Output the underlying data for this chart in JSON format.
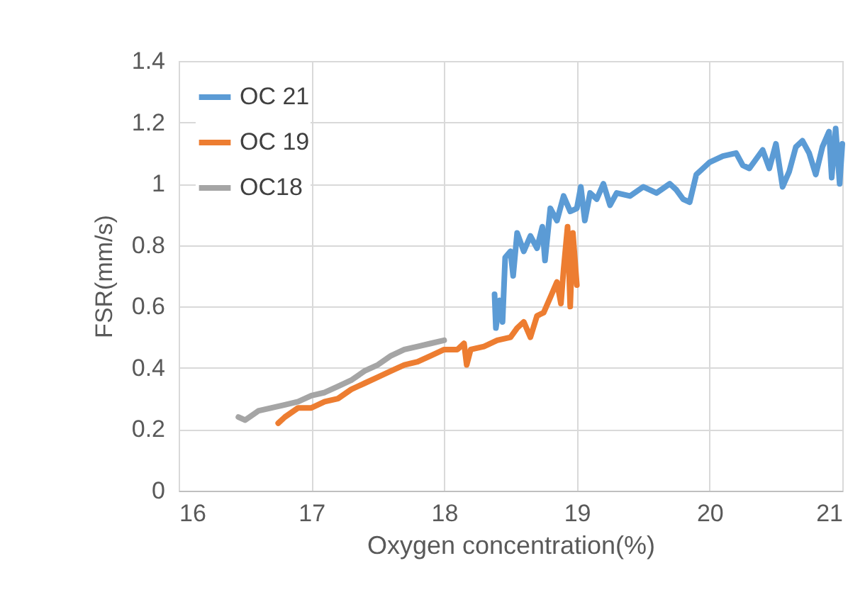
{
  "chart_data": {
    "type": "line",
    "xlabel": "Oxygen concentration(%)",
    "ylabel": "FSR(mm/s)",
    "xlim": [
      16,
      21
    ],
    "xticks": [
      16,
      17,
      18,
      19,
      20,
      21
    ],
    "ylim": [
      0,
      1.4
    ],
    "yticks": [
      0,
      0.2,
      0.4,
      0.6,
      0.8,
      1,
      1.2,
      1.4
    ],
    "grid": true,
    "legend": "top left",
    "line_style": "solid",
    "series": [
      {
        "name": "OC 21",
        "color": "#5b9bd5",
        "x": [
          18.38,
          18.39,
          18.42,
          18.44,
          18.46,
          18.5,
          18.52,
          18.55,
          18.6,
          18.65,
          18.7,
          18.74,
          18.76,
          18.8,
          18.85,
          18.9,
          18.95,
          19.0,
          19.03,
          19.06,
          19.1,
          19.15,
          19.2,
          19.25,
          19.3,
          19.4,
          19.5,
          19.6,
          19.7,
          19.75,
          19.8,
          19.85,
          19.9,
          20.0,
          20.1,
          20.2,
          20.25,
          20.3,
          20.35,
          20.4,
          20.45,
          20.5,
          20.55,
          20.6,
          20.65,
          20.7,
          20.75,
          20.8,
          20.85,
          20.9,
          20.92,
          20.95,
          20.98,
          21.0
        ],
        "values": [
          0.64,
          0.53,
          0.62,
          0.55,
          0.76,
          0.78,
          0.7,
          0.84,
          0.78,
          0.83,
          0.79,
          0.86,
          0.75,
          0.92,
          0.88,
          0.96,
          0.91,
          0.92,
          0.99,
          0.88,
          0.97,
          0.95,
          1.0,
          0.93,
          0.97,
          0.96,
          0.99,
          0.97,
          1.0,
          0.98,
          0.95,
          0.94,
          1.03,
          1.07,
          1.09,
          1.1,
          1.06,
          1.05,
          1.08,
          1.11,
          1.05,
          1.13,
          0.99,
          1.04,
          1.12,
          1.14,
          1.1,
          1.03,
          1.12,
          1.17,
          1.02,
          1.18,
          1.0,
          1.13
        ]
      },
      {
        "name": "OC 19",
        "color": "#ed7d31",
        "x": [
          16.75,
          16.8,
          16.9,
          17.0,
          17.1,
          17.2,
          17.3,
          17.4,
          17.5,
          17.6,
          17.7,
          17.8,
          17.9,
          18.0,
          18.1,
          18.15,
          18.17,
          18.2,
          18.3,
          18.4,
          18.5,
          18.55,
          18.6,
          18.65,
          18.7,
          18.75,
          18.8,
          18.85,
          18.88,
          18.9,
          18.93,
          18.95,
          18.97,
          19.0
        ],
        "values": [
          0.22,
          0.24,
          0.27,
          0.27,
          0.29,
          0.3,
          0.33,
          0.35,
          0.37,
          0.39,
          0.41,
          0.42,
          0.44,
          0.46,
          0.46,
          0.48,
          0.41,
          0.46,
          0.47,
          0.49,
          0.5,
          0.53,
          0.55,
          0.5,
          0.57,
          0.58,
          0.63,
          0.68,
          0.61,
          0.72,
          0.86,
          0.6,
          0.84,
          0.67
        ]
      },
      {
        "name": "OC18",
        "color": "#a5a5a5",
        "x": [
          16.45,
          16.5,
          16.6,
          16.7,
          16.8,
          16.9,
          17.0,
          17.1,
          17.2,
          17.3,
          17.4,
          17.5,
          17.6,
          17.7,
          17.8,
          17.9,
          18.0
        ],
        "values": [
          0.24,
          0.23,
          0.26,
          0.27,
          0.28,
          0.29,
          0.31,
          0.32,
          0.34,
          0.36,
          0.39,
          0.41,
          0.44,
          0.46,
          0.47,
          0.48,
          0.49
        ]
      }
    ]
  }
}
